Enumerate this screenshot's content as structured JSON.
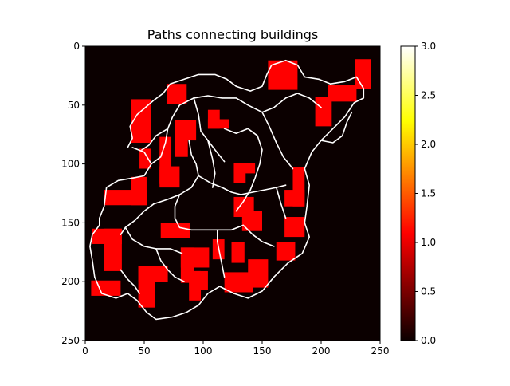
{
  "chart_data": {
    "type": "heatmap",
    "title": "Paths connecting buildings",
    "xlabel": "",
    "ylabel": "",
    "grid_size": [
      250,
      250
    ],
    "x_ticks": [
      0,
      50,
      100,
      150,
      200,
      250
    ],
    "y_ticks": [
      0,
      50,
      100,
      150,
      200,
      250
    ],
    "colormap": "hot",
    "colorbar": {
      "range": [
        0.0,
        3.0
      ],
      "ticks": [
        "0.0",
        "0.5",
        "1.0",
        "1.5",
        "2.0",
        "2.5",
        "3.0"
      ]
    },
    "value_meaning_colors": {
      "background": "#0b0000",
      "building": "#ff0000",
      "path": "#ffffff"
    },
    "buildings": [
      {
        "x0": 155,
        "y0": 12,
        "x1": 180,
        "y1": 37,
        "value": 1
      },
      {
        "x0": 229,
        "y0": 11,
        "x1": 242,
        "y1": 36,
        "value": 1
      },
      {
        "x0": 206,
        "y0": 33,
        "x1": 230,
        "y1": 47,
        "value": 1
      },
      {
        "x0": 195,
        "y0": 43,
        "x1": 209,
        "y1": 68,
        "value": 1
      },
      {
        "x0": 69,
        "y0": 32,
        "x1": 86,
        "y1": 49,
        "value": 1
      },
      {
        "x0": 39,
        "y0": 45,
        "x1": 56,
        "y1": 82,
        "value": 1
      },
      {
        "x0": 104,
        "y0": 54,
        "x1": 114,
        "y1": 70,
        "value": 1
      },
      {
        "x0": 104,
        "y0": 62,
        "x1": 122,
        "y1": 70,
        "value": 1
      },
      {
        "x0": 76,
        "y0": 63,
        "x1": 94,
        "y1": 80,
        "value": 1
      },
      {
        "x0": 76,
        "y0": 63,
        "x1": 87,
        "y1": 94,
        "value": 1
      },
      {
        "x0": 46,
        "y0": 87,
        "x1": 56,
        "y1": 104,
        "value": 1
      },
      {
        "x0": 63,
        "y0": 77,
        "x1": 73,
        "y1": 117,
        "value": 1
      },
      {
        "x0": 63,
        "y0": 102,
        "x1": 80,
        "y1": 120,
        "value": 1
      },
      {
        "x0": 126,
        "y0": 99,
        "x1": 144,
        "y1": 108,
        "value": 1
      },
      {
        "x0": 126,
        "y0": 99,
        "x1": 136,
        "y1": 116,
        "value": 1
      },
      {
        "x0": 176,
        "y0": 103,
        "x1": 186,
        "y1": 136,
        "value": 1
      },
      {
        "x0": 169,
        "y0": 122,
        "x1": 186,
        "y1": 136,
        "value": 1
      },
      {
        "x0": 39,
        "y0": 111,
        "x1": 52,
        "y1": 135,
        "value": 1
      },
      {
        "x0": 16,
        "y0": 122,
        "x1": 52,
        "y1": 135,
        "value": 1
      },
      {
        "x0": 126,
        "y0": 128,
        "x1": 143,
        "y1": 145,
        "value": 1
      },
      {
        "x0": 133,
        "y0": 140,
        "x1": 150,
        "y1": 157,
        "value": 1
      },
      {
        "x0": 169,
        "y0": 145,
        "x1": 186,
        "y1": 162,
        "value": 1
      },
      {
        "x0": 64,
        "y0": 150,
        "x1": 89,
        "y1": 163,
        "value": 1
      },
      {
        "x0": 6,
        "y0": 155,
        "x1": 31,
        "y1": 168,
        "value": 1
      },
      {
        "x0": 16,
        "y0": 155,
        "x1": 31,
        "y1": 191,
        "value": 1
      },
      {
        "x0": 108,
        "y0": 164,
        "x1": 118,
        "y1": 181,
        "value": 1
      },
      {
        "x0": 124,
        "y0": 166,
        "x1": 135,
        "y1": 184,
        "value": 1
      },
      {
        "x0": 162,
        "y0": 166,
        "x1": 178,
        "y1": 182,
        "value": 1
      },
      {
        "x0": 81,
        "y0": 171,
        "x1": 105,
        "y1": 188,
        "value": 1
      },
      {
        "x0": 81,
        "y0": 171,
        "x1": 92,
        "y1": 201,
        "value": 1
      },
      {
        "x0": 88,
        "y0": 191,
        "x1": 104,
        "y1": 207,
        "value": 1
      },
      {
        "x0": 88,
        "y0": 191,
        "x1": 98,
        "y1": 216,
        "value": 1
      },
      {
        "x0": 138,
        "y0": 181,
        "x1": 155,
        "y1": 205,
        "value": 1
      },
      {
        "x0": 118,
        "y0": 192,
        "x1": 142,
        "y1": 209,
        "value": 1
      },
      {
        "x0": 45,
        "y0": 187,
        "x1": 70,
        "y1": 200,
        "value": 1
      },
      {
        "x0": 45,
        "y0": 187,
        "x1": 59,
        "y1": 222,
        "value": 1
      },
      {
        "x0": 5,
        "y0": 199,
        "x1": 30,
        "y1": 212,
        "value": 1
      }
    ],
    "paths": [
      {
        "value": 3,
        "points": [
          [
            12,
            146
          ],
          [
            16,
            136
          ],
          [
            18,
            120
          ],
          [
            28,
            114
          ],
          [
            40,
            112
          ],
          [
            50,
            110
          ],
          [
            56,
            100
          ],
          [
            50,
            90
          ],
          [
            40,
            86
          ]
        ]
      },
      {
        "value": 3,
        "points": [
          [
            36,
            86
          ],
          [
            40,
            78
          ],
          [
            38,
            68
          ],
          [
            44,
            58
          ],
          [
            58,
            46
          ],
          [
            66,
            40
          ],
          [
            72,
            32
          ],
          [
            84,
            28
          ],
          [
            96,
            24
          ],
          [
            110,
            24
          ],
          [
            120,
            28
          ],
          [
            128,
            34
          ]
        ]
      },
      {
        "value": 3,
        "points": [
          [
            128,
            34
          ],
          [
            140,
            38
          ],
          [
            150,
            34
          ],
          [
            154,
            24
          ],
          [
            158,
            16
          ],
          [
            170,
            12
          ],
          [
            180,
            16
          ],
          [
            186,
            26
          ],
          [
            198,
            28
          ],
          [
            208,
            32
          ]
        ]
      },
      {
        "value": 3,
        "points": [
          [
            208,
            32
          ],
          [
            220,
            30
          ],
          [
            230,
            26
          ],
          [
            236,
            36
          ],
          [
            236,
            44
          ],
          [
            228,
            48
          ],
          [
            220,
            60
          ],
          [
            210,
            70
          ],
          [
            200,
            80
          ],
          [
            192,
            90
          ],
          [
            186,
            104
          ]
        ]
      },
      {
        "value": 3,
        "points": [
          [
            186,
            104
          ],
          [
            190,
            118
          ],
          [
            188,
            136
          ],
          [
            186,
            150
          ],
          [
            190,
            162
          ],
          [
            184,
            176
          ],
          [
            172,
            184
          ],
          [
            160,
            196
          ],
          [
            150,
            208
          ],
          [
            138,
            214
          ],
          [
            126,
            210
          ]
        ]
      },
      {
        "value": 3,
        "points": [
          [
            126,
            210
          ],
          [
            114,
            204
          ],
          [
            104,
            210
          ],
          [
            96,
            220
          ],
          [
            86,
            226
          ],
          [
            74,
            230
          ],
          [
            60,
            232
          ],
          [
            52,
            226
          ],
          [
            44,
            216
          ],
          [
            36,
            210
          ],
          [
            26,
            214
          ]
        ]
      },
      {
        "value": 3,
        "points": [
          [
            26,
            214
          ],
          [
            14,
            210
          ],
          [
            8,
            196
          ],
          [
            6,
            182
          ],
          [
            4,
            170
          ],
          [
            6,
            160
          ],
          [
            12,
            152
          ],
          [
            12,
            146
          ]
        ]
      },
      {
        "value": 3,
        "points": [
          [
            56,
            100
          ],
          [
            64,
            94
          ],
          [
            68,
            82
          ],
          [
            70,
            70
          ],
          [
            74,
            60
          ],
          [
            80,
            50
          ],
          [
            92,
            44
          ],
          [
            104,
            42
          ],
          [
            116,
            44
          ],
          [
            128,
            44
          ],
          [
            138,
            50
          ],
          [
            150,
            56
          ],
          [
            160,
            52
          ],
          [
            170,
            44
          ],
          [
            180,
            40
          ],
          [
            190,
            44
          ],
          [
            200,
            52
          ]
        ]
      },
      {
        "value": 3,
        "points": [
          [
            92,
            44
          ],
          [
            96,
            58
          ],
          [
            98,
            72
          ],
          [
            104,
            80
          ],
          [
            110,
            88
          ],
          [
            118,
            98
          ]
        ]
      },
      {
        "value": 3,
        "points": [
          [
            150,
            56
          ],
          [
            156,
            68
          ],
          [
            162,
            82
          ],
          [
            168,
            94
          ],
          [
            176,
            104
          ]
        ]
      },
      {
        "value": 3,
        "points": [
          [
            118,
            70
          ],
          [
            128,
            74
          ],
          [
            138,
            70
          ],
          [
            146,
            76
          ],
          [
            150,
            88
          ],
          [
            148,
            100
          ],
          [
            144,
            112
          ],
          [
            140,
            122
          ]
        ]
      },
      {
        "value": 3,
        "points": [
          [
            88,
            80
          ],
          [
            90,
            92
          ],
          [
            94,
            100
          ],
          [
            96,
            110
          ],
          [
            90,
            120
          ],
          [
            80,
            126
          ],
          [
            70,
            130
          ],
          [
            58,
            134
          ]
        ]
      },
      {
        "value": 3,
        "points": [
          [
            96,
            110
          ],
          [
            106,
            116
          ],
          [
            116,
            120
          ],
          [
            124,
            124
          ],
          [
            132,
            126
          ],
          [
            142,
            124
          ],
          [
            152,
            122
          ],
          [
            162,
            120
          ],
          [
            170,
            118
          ]
        ]
      },
      {
        "value": 3,
        "points": [
          [
            80,
            126
          ],
          [
            76,
            136
          ],
          [
            76,
            146
          ],
          [
            80,
            154
          ],
          [
            90,
            156
          ],
          [
            100,
            156
          ],
          [
            112,
            156
          ],
          [
            124,
            156
          ],
          [
            134,
            152
          ]
        ]
      },
      {
        "value": 3,
        "points": [
          [
            112,
            156
          ],
          [
            112,
            166
          ],
          [
            114,
            176
          ],
          [
            116,
            186
          ],
          [
            118,
            196
          ]
        ]
      },
      {
        "value": 3,
        "points": [
          [
            134,
            152
          ],
          [
            142,
            160
          ],
          [
            150,
            166
          ],
          [
            160,
            170
          ]
        ]
      },
      {
        "value": 3,
        "points": [
          [
            58,
            134
          ],
          [
            50,
            140
          ],
          [
            42,
            148
          ],
          [
            34,
            154
          ],
          [
            30,
            160
          ]
        ]
      },
      {
        "value": 3,
        "points": [
          [
            34,
            154
          ],
          [
            40,
            164
          ],
          [
            50,
            170
          ],
          [
            60,
            172
          ],
          [
            72,
            172
          ],
          [
            82,
            176
          ]
        ]
      },
      {
        "value": 3,
        "points": [
          [
            60,
            172
          ],
          [
            64,
            182
          ],
          [
            70,
            190
          ],
          [
            76,
            196
          ],
          [
            84,
            200
          ]
        ]
      },
      {
        "value": 3,
        "points": [
          [
            30,
            190
          ],
          [
            36,
            198
          ],
          [
            42,
            204
          ],
          [
            46,
            210
          ]
        ]
      },
      {
        "value": 3,
        "points": [
          [
            140,
            122
          ],
          [
            134,
            132
          ],
          [
            128,
            140
          ]
        ]
      },
      {
        "value": 3,
        "points": [
          [
            162,
            120
          ],
          [
            166,
            134
          ],
          [
            170,
            146
          ]
        ]
      },
      {
        "value": 3,
        "points": [
          [
            200,
            80
          ],
          [
            210,
            82
          ],
          [
            218,
            76
          ],
          [
            222,
            64
          ],
          [
            226,
            56
          ]
        ]
      },
      {
        "value": 3,
        "points": [
          [
            70,
            70
          ],
          [
            60,
            76
          ],
          [
            54,
            84
          ],
          [
            48,
            88
          ]
        ]
      },
      {
        "value": 3,
        "points": [
          [
            104,
            80
          ],
          [
            108,
            96
          ],
          [
            110,
            108
          ],
          [
            108,
            120
          ]
        ]
      }
    ]
  }
}
